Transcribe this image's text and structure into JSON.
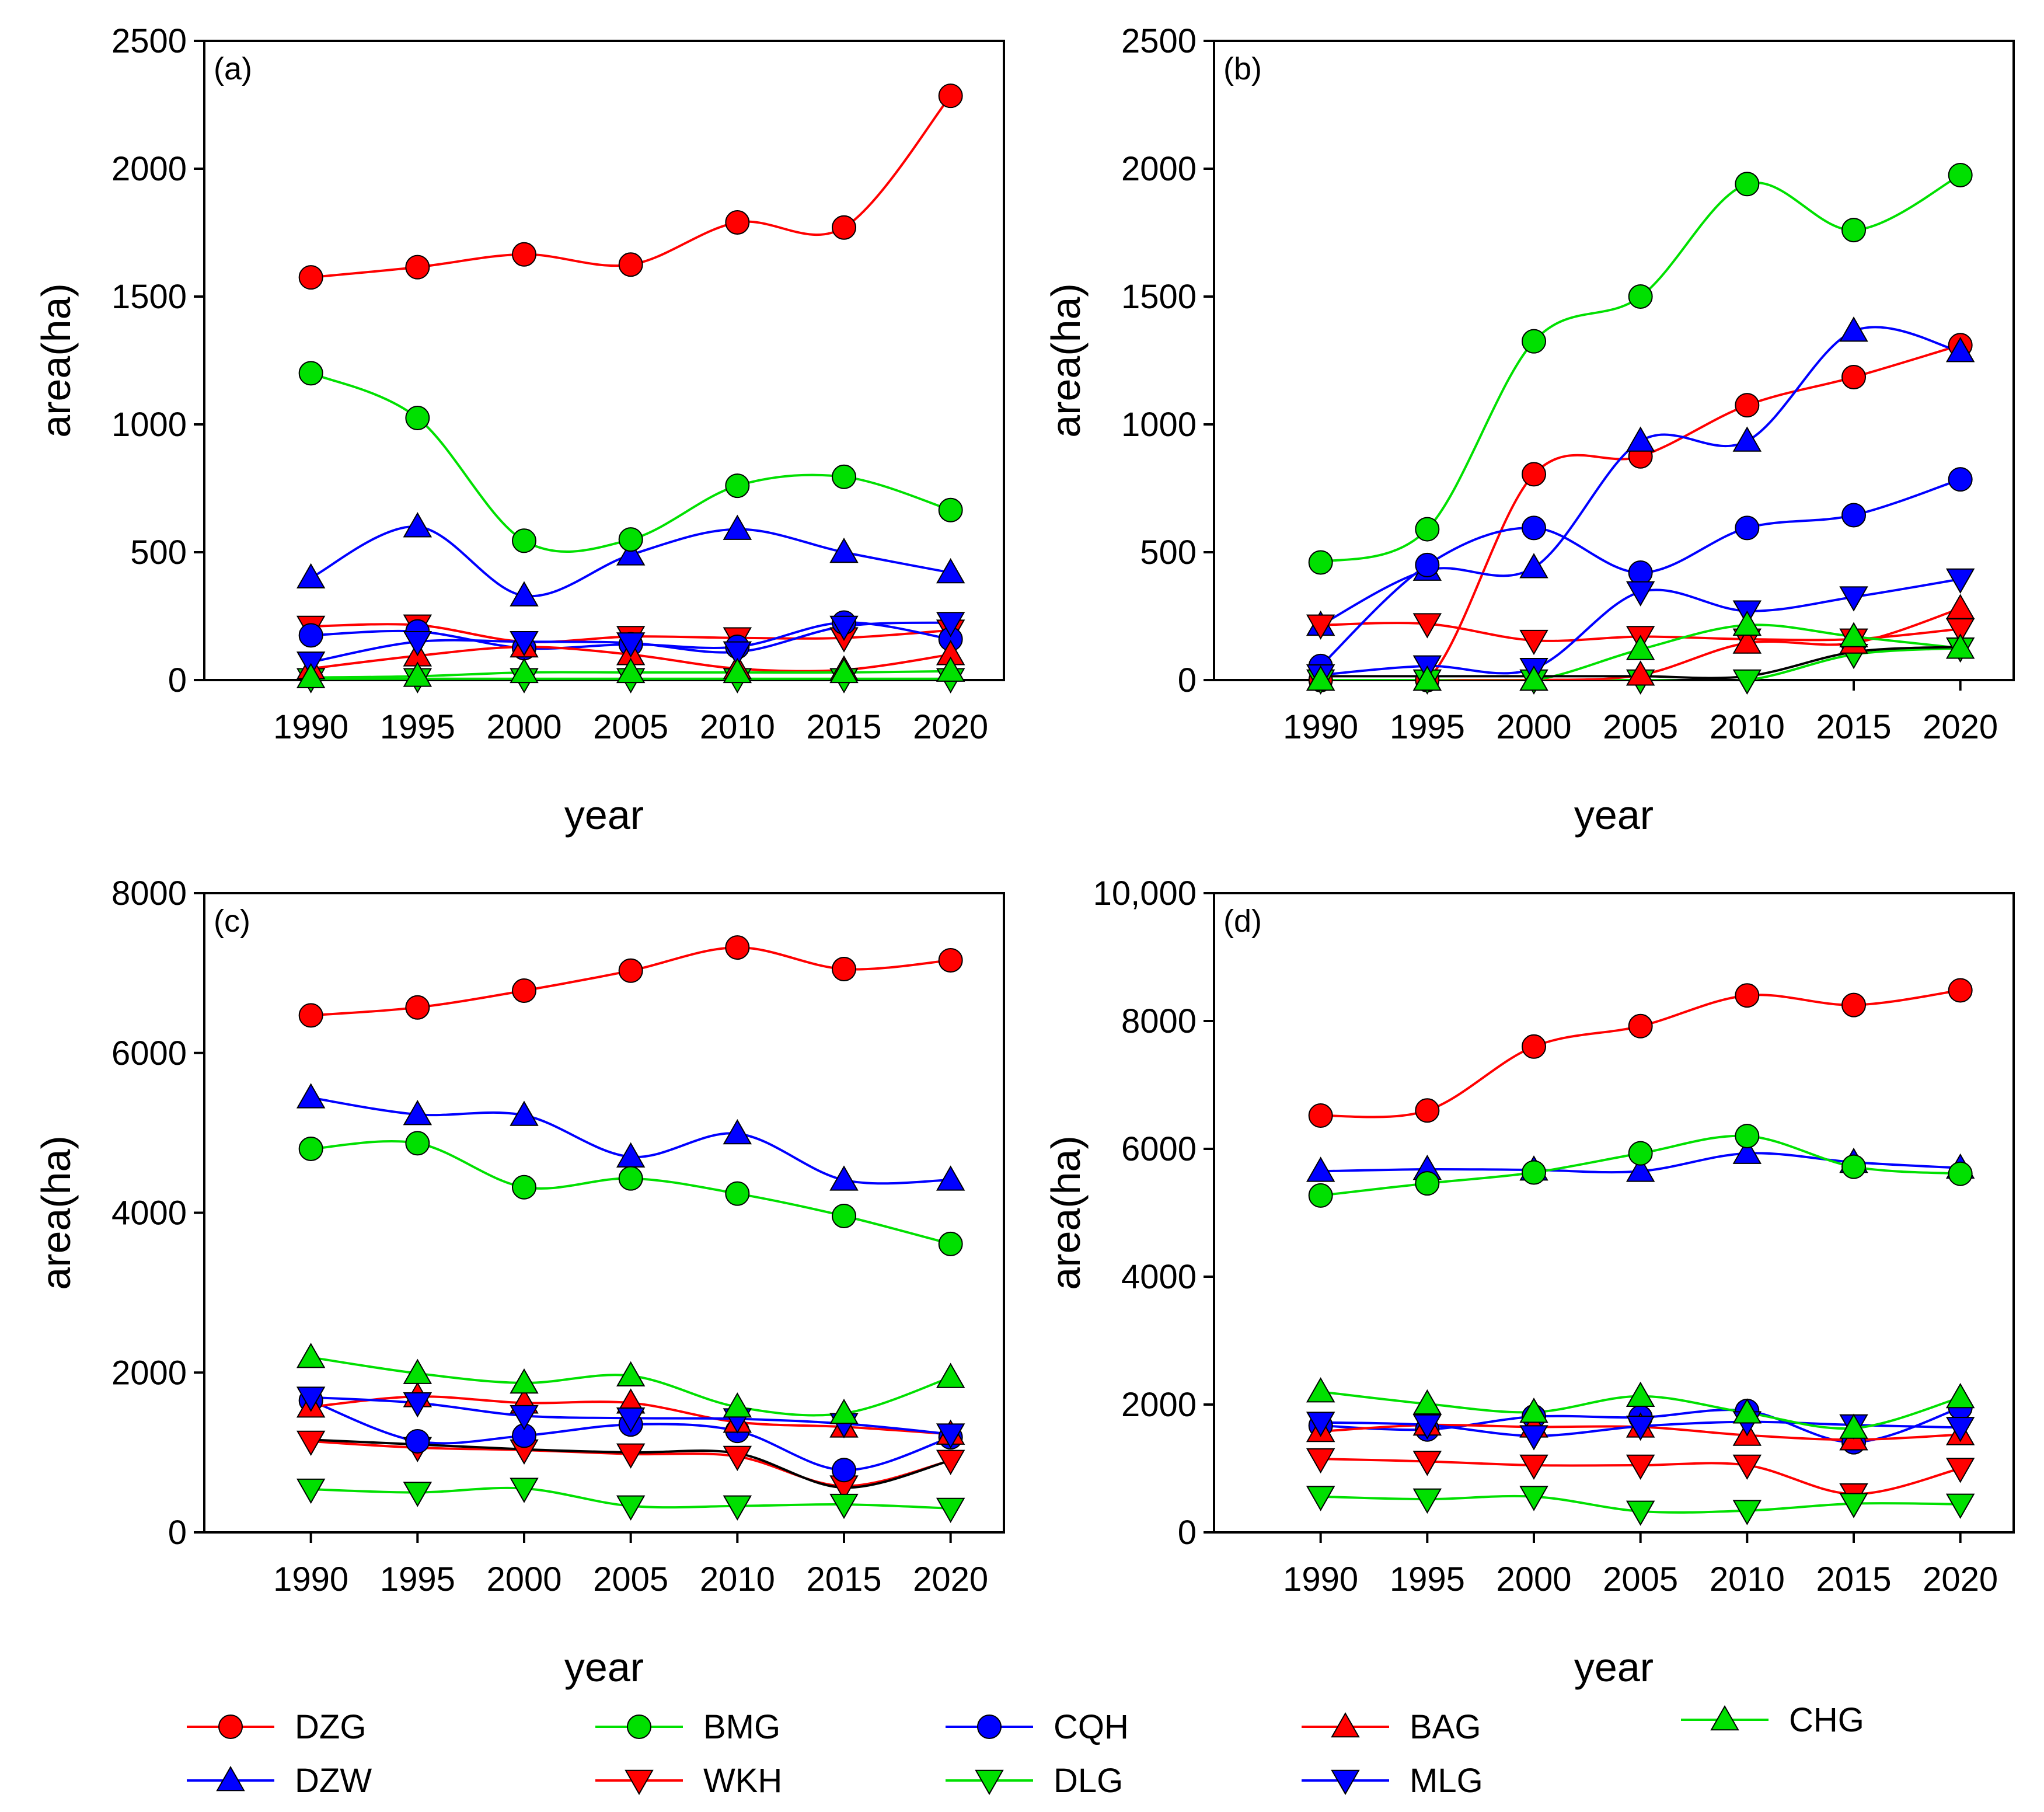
{
  "chart_data": [
    {
      "panel": "(a)",
      "type": "line",
      "xlabel": "year",
      "ylabel": "area(ha)",
      "ylim": [
        0,
        2500
      ],
      "yticks": [
        0,
        500,
        1000,
        1500,
        2000,
        2500
      ],
      "ytick_labels": [
        "0",
        "500",
        "1000",
        "1500",
        "2000",
        "2500"
      ],
      "x": [
        1990,
        1995,
        2000,
        2005,
        2010,
        2015,
        2020
      ],
      "xtick_labels": [
        "1990",
        "1995",
        "2000",
        "2005",
        "2010",
        "2015",
        "2020"
      ],
      "series": [
        {
          "name": "DZG",
          "color": "#ff0000",
          "marker": "circle",
          "values": [
            1575,
            1615,
            1665,
            1625,
            1790,
            1770,
            2285
          ]
        },
        {
          "name": "DZW",
          "color": "#0000ff",
          "marker": "triangle-up",
          "values": [
            400,
            600,
            330,
            490,
            590,
            500,
            420
          ]
        },
        {
          "name": "BMG",
          "color": "#00e000",
          "marker": "circle",
          "values": [
            1200,
            1025,
            545,
            550,
            760,
            795,
            665
          ]
        },
        {
          "name": "WKH",
          "color": "#ff0000",
          "marker": "triangle-down",
          "values": [
            210,
            215,
            150,
            170,
            165,
            165,
            195
          ]
        },
        {
          "name": "CQH",
          "color": "#0000ff",
          "marker": "circle",
          "values": [
            175,
            190,
            125,
            140,
            130,
            225,
            160
          ]
        },
        {
          "name": "DLG",
          "color": "#00e000",
          "marker": "triangle-down",
          "values": [
            5,
            5,
            5,
            5,
            5,
            5,
            5
          ]
        },
        {
          "name": "BAG",
          "color": "#ff0000",
          "marker": "triangle-up",
          "values": [
            45,
            95,
            130,
            100,
            45,
            40,
            100
          ]
        },
        {
          "name": "MLG",
          "color": "#0000ff",
          "marker": "triangle-down",
          "values": [
            70,
            150,
            150,
            145,
            110,
            210,
            225
          ]
        },
        {
          "name": "CHG",
          "color": "#00e000",
          "marker": "triangle-up",
          "values": [
            10,
            15,
            30,
            30,
            30,
            30,
            35
          ]
        }
      ]
    },
    {
      "panel": "(b)",
      "type": "line",
      "xlabel": "year",
      "ylabel": "area(ha)",
      "ylim": [
        0,
        2500
      ],
      "yticks": [
        0,
        500,
        1000,
        1500,
        2000,
        2500
      ],
      "ytick_labels": [
        "0",
        "500",
        "1000",
        "1500",
        "2000",
        "2500"
      ],
      "x": [
        1990,
        1995,
        2000,
        2005,
        2010,
        2015,
        2020
      ],
      "xtick_labels": [
        "1990",
        "1995",
        "2000",
        "2005",
        "2010",
        "2015",
        "2020"
      ],
      "series": [
        {
          "name": "DZG",
          "color": "#ff0000",
          "marker": "circle",
          "values": [
            0,
            0,
            805,
            875,
            1075,
            1185,
            1310
          ]
        },
        {
          "name": "DZW",
          "color": "#0000ff",
          "marker": "triangle-up",
          "values": [
            215,
            430,
            440,
            935,
            935,
            1365,
            1285
          ]
        },
        {
          "name": "BMG",
          "color": "#00e000",
          "marker": "circle",
          "values": [
            460,
            590,
            1325,
            1500,
            1940,
            1760,
            1975
          ]
        },
        {
          "name": "WKH",
          "color": "#ff0000",
          "marker": "triangle-down",
          "values": [
            215,
            220,
            155,
            170,
            160,
            160,
            200
          ]
        },
        {
          "name": "CQH",
          "color": "#0000ff",
          "marker": "circle",
          "values": [
            55,
            450,
            595,
            420,
            595,
            645,
            785
          ]
        },
        {
          "name": "DLG",
          "color": "#00e000",
          "marker": "triangle-down",
          "values": [
            0,
            0,
            0,
            0,
            0,
            100,
            125
          ]
        },
        {
          "name": "BAG",
          "color": "#ff0000",
          "marker": "triangle-up",
          "values": [
            0,
            0,
            0,
            20,
            145,
            145,
            280
          ]
        },
        {
          "name": "MLG",
          "color": "#0000ff",
          "marker": "triangle-down",
          "values": [
            20,
            55,
            45,
            345,
            270,
            325,
            395
          ]
        },
        {
          "name": "CHG",
          "color": "#00e000",
          "marker": "triangle-up",
          "values": [
            0,
            0,
            0,
            120,
            215,
            170,
            125
          ]
        },
        {
          "name": "unlabeled-black",
          "color": "#000000",
          "marker": "none",
          "values": [
            15,
            15,
            15,
            15,
            15,
            110,
            130
          ]
        }
      ]
    },
    {
      "panel": "(c)",
      "type": "line",
      "xlabel": "year",
      "ylabel": "area(ha)",
      "ylim": [
        0,
        8000
      ],
      "yticks": [
        0,
        2000,
        4000,
        6000,
        8000
      ],
      "ytick_labels": [
        "0",
        "2000",
        "4000",
        "6000",
        "8000"
      ],
      "x": [
        1990,
        1995,
        2000,
        2005,
        2010,
        2015,
        2020
      ],
      "xtick_labels": [
        "1990",
        "1995",
        "2000",
        "2005",
        "2010",
        "2015",
        "2020"
      ],
      "series": [
        {
          "name": "DZG",
          "color": "#ff0000",
          "marker": "circle",
          "values": [
            6470,
            6570,
            6780,
            7030,
            7320,
            7050,
            7160
          ]
        },
        {
          "name": "DZW",
          "color": "#0000ff",
          "marker": "triangle-up",
          "values": [
            5440,
            5230,
            5220,
            4700,
            4990,
            4410,
            4410
          ]
        },
        {
          "name": "BMG",
          "color": "#00e000",
          "marker": "circle",
          "values": [
            4800,
            4870,
            4320,
            4430,
            4240,
            3960,
            3610
          ]
        },
        {
          "name": "WKH",
          "color": "#ff0000",
          "marker": "triangle-down",
          "values": [
            1140,
            1060,
            1030,
            980,
            950,
            580,
            900
          ]
        },
        {
          "name": "CQH",
          "color": "#0000ff",
          "marker": "circle",
          "values": [
            1650,
            1140,
            1210,
            1350,
            1270,
            780,
            1190
          ]
        },
        {
          "name": "DLG",
          "color": "#00e000",
          "marker": "triangle-down",
          "values": [
            540,
            500,
            550,
            330,
            330,
            350,
            300
          ]
        },
        {
          "name": "BAG",
          "color": "#ff0000",
          "marker": "triangle-up",
          "values": [
            1570,
            1700,
            1620,
            1620,
            1380,
            1320,
            1230
          ]
        },
        {
          "name": "MLG",
          "color": "#0000ff",
          "marker": "triangle-down",
          "values": [
            1690,
            1620,
            1460,
            1430,
            1420,
            1360,
            1230
          ]
        },
        {
          "name": "CHG",
          "color": "#00e000",
          "marker": "triangle-up",
          "values": [
            2190,
            1990,
            1870,
            1960,
            1570,
            1490,
            1940
          ]
        },
        {
          "name": "unlabeled-black",
          "color": "#000000",
          "marker": "none",
          "values": [
            1160,
            1100,
            1040,
            1000,
            990,
            560,
            900
          ]
        }
      ]
    },
    {
      "panel": "(d)",
      "type": "line",
      "xlabel": "year",
      "ylabel": "area(ha)",
      "ylim": [
        0,
        10000
      ],
      "yticks": [
        0,
        2000,
        4000,
        6000,
        8000,
        10000
      ],
      "ytick_labels": [
        "0",
        "2000",
        "4000",
        "6000",
        "8000",
        "10,000"
      ],
      "x": [
        1990,
        1995,
        2000,
        2005,
        2010,
        2015,
        2020
      ],
      "xtick_labels": [
        "1990",
        "1995",
        "2000",
        "2005",
        "2010",
        "2015",
        "2020"
      ],
      "series": [
        {
          "name": "DZG",
          "color": "#ff0000",
          "marker": "circle",
          "values": [
            6520,
            6600,
            7600,
            7920,
            8400,
            8250,
            8480
          ]
        },
        {
          "name": "DZW",
          "color": "#0000ff",
          "marker": "triangle-up",
          "values": [
            5650,
            5680,
            5670,
            5650,
            5930,
            5790,
            5700
          ]
        },
        {
          "name": "BMG",
          "color": "#00e000",
          "marker": "circle",
          "values": [
            5270,
            5460,
            5630,
            5930,
            6200,
            5720,
            5610
          ]
        },
        {
          "name": "WKH",
          "color": "#ff0000",
          "marker": "triangle-down",
          "values": [
            1150,
            1110,
            1050,
            1050,
            1050,
            600,
            1000
          ]
        },
        {
          "name": "CQH",
          "color": "#0000ff",
          "marker": "circle",
          "values": [
            1670,
            1610,
            1810,
            1800,
            1900,
            1410,
            1950
          ]
        },
        {
          "name": "DLG",
          "color": "#00e000",
          "marker": "triangle-down",
          "values": [
            560,
            520,
            560,
            330,
            340,
            450,
            440
          ]
        },
        {
          "name": "BAG",
          "color": "#ff0000",
          "marker": "triangle-up",
          "values": [
            1580,
            1680,
            1650,
            1650,
            1520,
            1450,
            1530
          ]
        },
        {
          "name": "MLG",
          "color": "#0000ff",
          "marker": "triangle-down",
          "values": [
            1720,
            1680,
            1510,
            1660,
            1730,
            1680,
            1640
          ]
        },
        {
          "name": "CHG",
          "color": "#00e000",
          "marker": "triangle-up",
          "values": [
            2200,
            2010,
            1880,
            2130,
            1870,
            1630,
            2110
          ]
        }
      ]
    }
  ],
  "legend": {
    "items": [
      {
        "name": "DZG",
        "color": "#ff0000",
        "marker": "circle"
      },
      {
        "name": "DZW",
        "color": "#0000ff",
        "marker": "triangle-up"
      },
      {
        "name": "BMG",
        "color": "#00e000",
        "marker": "circle"
      },
      {
        "name": "WKH",
        "color": "#ff0000",
        "marker": "triangle-down"
      },
      {
        "name": "CQH",
        "color": "#0000ff",
        "marker": "circle"
      },
      {
        "name": "DLG",
        "color": "#00e000",
        "marker": "triangle-down"
      },
      {
        "name": "BAG",
        "color": "#ff0000",
        "marker": "triangle-up"
      },
      {
        "name": "MLG",
        "color": "#0000ff",
        "marker": "triangle-down"
      },
      {
        "name": "CHG",
        "color": "#00e000",
        "marker": "triangle-up"
      }
    ]
  }
}
